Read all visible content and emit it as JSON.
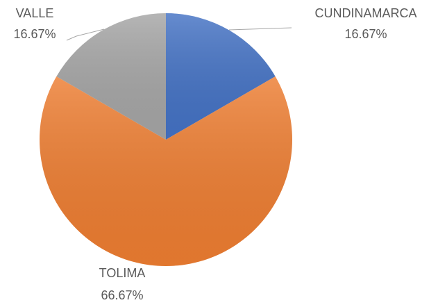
{
  "chart_data": {
    "type": "pie",
    "categories": [
      "CUNDINAMARCA",
      "TOLIMA",
      "VALLE"
    ],
    "values": [
      16.67,
      66.67,
      16.67
    ],
    "value_labels": [
      "16.67%",
      "66.67%",
      "16.67%"
    ],
    "colors": [
      "#4472c4",
      "#ed7d31",
      "#a5a5a5"
    ]
  }
}
